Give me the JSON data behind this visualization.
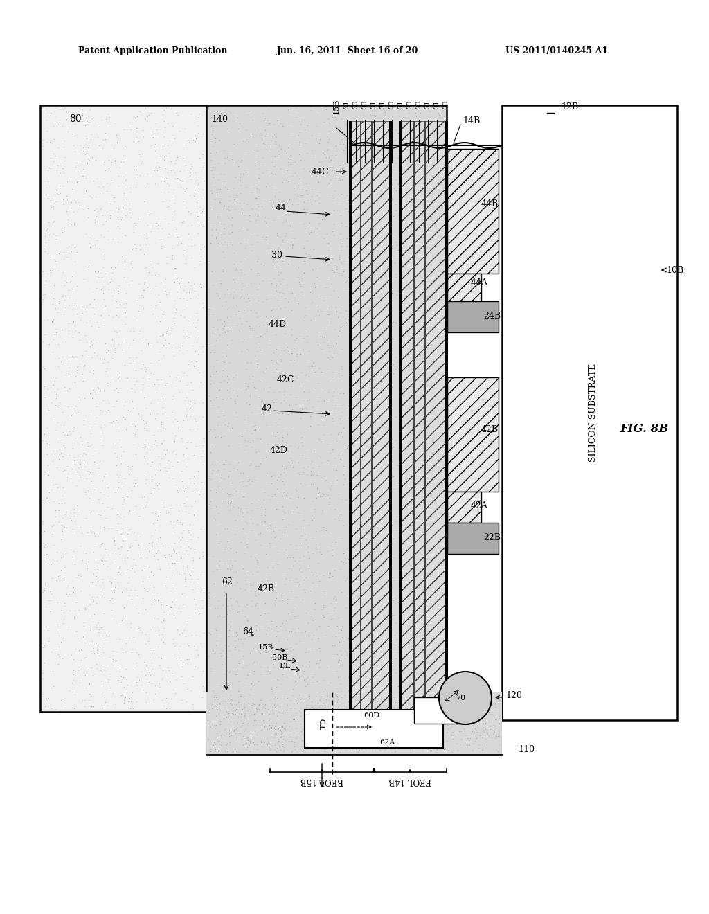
{
  "bg_color": "#ffffff",
  "header_left": "Patent Application Publication",
  "header_mid": "Jun. 16, 2011  Sheet 16 of 20",
  "header_right": "US 2011/0140245 A1",
  "fig_label": "FIG. 8B",
  "silicon_label": "SILICON SUBSTRATE",
  "left_box_label": "80",
  "beol_label": "140",
  "top_nums": [
    "31",
    "30",
    "31",
    "30",
    "31",
    "30",
    "31",
    "30"
  ],
  "top_label_15B": "15B",
  "top_label_30": "30",
  "label_14B": "14B",
  "label_12B": "12B",
  "label_10B": "10B",
  "label_44C": "44C",
  "label_44": "44",
  "label_30": "30",
  "label_44D": "44D",
  "label_42C": "42C",
  "label_42": "42",
  "label_42D": "42D",
  "label_44B": "44B",
  "label_44A": "44A",
  "label_24B": "24B",
  "label_42B_r": "42B",
  "label_42A": "42A",
  "label_22B": "22B",
  "label_42B_l": "42B",
  "label_64": "64",
  "label_15B_l": "15B",
  "label_50B": "50B",
  "label_DL": "DL",
  "label_62": "62",
  "label_TD": "TD",
  "label_60D": "60D",
  "label_62A": "62A",
  "label_70": "70",
  "label_120": "120",
  "label_110": "110",
  "label_FEOL14B": "FEOL 14B",
  "label_BEOL15B": "BEOL 15B"
}
